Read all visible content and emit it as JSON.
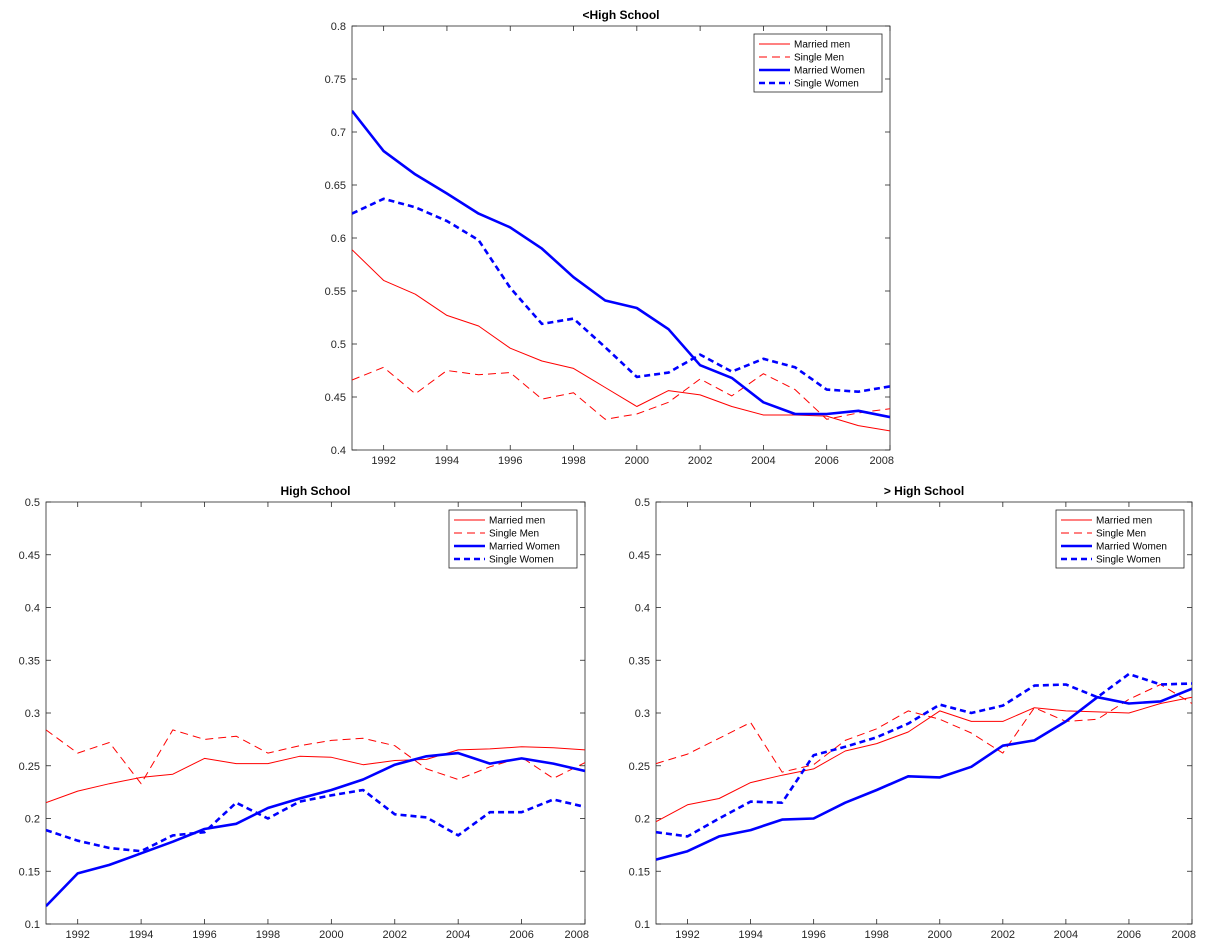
{
  "chart_data": [
    {
      "type": "line",
      "title": "<High School",
      "xlabel": "",
      "ylabel": "",
      "xlim": [
        1991,
        2008
      ],
      "ylim": [
        0.4,
        0.8
      ],
      "yticks": [
        0.4,
        0.45,
        0.5,
        0.55,
        0.6,
        0.65,
        0.7,
        0.75,
        0.8
      ],
      "xticks": [
        1992,
        1994,
        1996,
        1998,
        2000,
        2002,
        2004,
        2006,
        2008
      ],
      "x": [
        1991,
        1992,
        1993,
        1994,
        1995,
        1996,
        1997,
        1998,
        1999,
        2000,
        2001,
        2002,
        2003,
        2004,
        2005,
        2006,
        2007,
        2008
      ],
      "legend_position": "top-right",
      "grid": false,
      "series": [
        {
          "name": "Married men",
          "color": "#ff0000",
          "style": "solid-thin",
          "values": [
            0.589,
            0.56,
            0.547,
            0.527,
            0.517,
            0.496,
            0.484,
            0.477,
            0.459,
            0.441,
            0.456,
            0.452,
            0.441,
            0.433,
            0.433,
            0.432,
            0.423,
            0.418
          ]
        },
        {
          "name": "Single Men",
          "color": "#ff0000",
          "style": "dashed-thin",
          "values": [
            0.466,
            0.478,
            0.453,
            0.475,
            0.471,
            0.473,
            0.448,
            0.454,
            0.429,
            0.434,
            0.445,
            0.467,
            0.451,
            0.472,
            0.457,
            0.429,
            0.435,
            0.439
          ]
        },
        {
          "name": "Married Women",
          "color": "#0000ff",
          "style": "solid-thick",
          "values": [
            0.72,
            0.682,
            0.66,
            0.642,
            0.623,
            0.61,
            0.59,
            0.563,
            0.541,
            0.534,
            0.514,
            0.48,
            0.468,
            0.445,
            0.434,
            0.434,
            0.437,
            0.431
          ]
        },
        {
          "name": "Single Women",
          "color": "#0000ff",
          "style": "dashed-thick",
          "values": [
            0.623,
            0.637,
            0.629,
            0.616,
            0.598,
            0.553,
            0.519,
            0.524,
            0.497,
            0.469,
            0.473,
            0.49,
            0.474,
            0.486,
            0.478,
            0.457,
            0.455,
            0.46
          ]
        }
      ]
    },
    {
      "type": "line",
      "title": "High School",
      "xlabel": "",
      "ylabel": "",
      "xlim": [
        1991,
        2008
      ],
      "ylim": [
        0.1,
        0.5
      ],
      "yticks": [
        0.1,
        0.15,
        0.2,
        0.25,
        0.3,
        0.35,
        0.4,
        0.45,
        0.5
      ],
      "xticks": [
        1992,
        1994,
        1996,
        1998,
        2000,
        2002,
        2004,
        2006,
        2008
      ],
      "x": [
        1991,
        1992,
        1993,
        1994,
        1995,
        1996,
        1997,
        1998,
        1999,
        2000,
        2001,
        2002,
        2003,
        2004,
        2005,
        2006,
        2007,
        2008
      ],
      "legend_position": "top-right",
      "grid": false,
      "series": [
        {
          "name": "Married men",
          "color": "#ff0000",
          "style": "solid-thin",
          "values": [
            0.215,
            0.226,
            0.233,
            0.239,
            0.242,
            0.257,
            0.252,
            0.252,
            0.259,
            0.258,
            0.251,
            0.255,
            0.256,
            0.265,
            0.266,
            0.268,
            0.267,
            0.265
          ]
        },
        {
          "name": "Single Men",
          "color": "#ff0000",
          "style": "dashed-thin",
          "values": [
            0.284,
            0.262,
            0.272,
            0.233,
            0.284,
            0.275,
            0.278,
            0.262,
            0.269,
            0.274,
            0.276,
            0.269,
            0.247,
            0.237,
            0.249,
            0.258,
            0.238,
            0.253
          ]
        },
        {
          "name": "Married Women",
          "color": "#0000ff",
          "style": "solid-thick",
          "values": [
            0.117,
            0.148,
            0.156,
            0.167,
            0.178,
            0.19,
            0.195,
            0.21,
            0.219,
            0.227,
            0.237,
            0.251,
            0.259,
            0.262,
            0.252,
            0.257,
            0.252,
            0.245
          ]
        },
        {
          "name": "Single Women",
          "color": "#0000ff",
          "style": "dashed-thick",
          "values": [
            0.189,
            0.179,
            0.172,
            0.169,
            0.184,
            0.187,
            0.215,
            0.2,
            0.216,
            0.222,
            0.227,
            0.204,
            0.201,
            0.184,
            0.206,
            0.206,
            0.218,
            0.211
          ]
        }
      ]
    },
    {
      "type": "line",
      "title": "> High School",
      "xlabel": "",
      "ylabel": "",
      "xlim": [
        1991,
        2008
      ],
      "ylim": [
        0.1,
        0.5
      ],
      "yticks": [
        0.1,
        0.15,
        0.2,
        0.25,
        0.3,
        0.35,
        0.4,
        0.45,
        0.5
      ],
      "xticks": [
        1992,
        1994,
        1996,
        1998,
        2000,
        2002,
        2004,
        2006,
        2008
      ],
      "x": [
        1991,
        1992,
        1993,
        1994,
        1995,
        1996,
        1997,
        1998,
        1999,
        2000,
        2001,
        2002,
        2003,
        2004,
        2005,
        2006,
        2007,
        2008
      ],
      "legend_position": "top-right",
      "grid": false,
      "series": [
        {
          "name": "Married men",
          "color": "#ff0000",
          "style": "solid-thin",
          "values": [
            0.197,
            0.213,
            0.219,
            0.234,
            0.241,
            0.247,
            0.264,
            0.271,
            0.282,
            0.302,
            0.292,
            0.292,
            0.305,
            0.302,
            0.301,
            0.3,
            0.309,
            0.315
          ]
        },
        {
          "name": "Single Men",
          "color": "#ff0000",
          "style": "dashed-thin",
          "values": [
            0.252,
            0.261,
            0.276,
            0.291,
            0.244,
            0.251,
            0.274,
            0.285,
            0.302,
            0.294,
            0.281,
            0.262,
            0.305,
            0.292,
            0.294,
            0.313,
            0.327,
            0.309
          ]
        },
        {
          "name": "Married Women",
          "color": "#0000ff",
          "style": "solid-thick",
          "values": [
            0.161,
            0.169,
            0.183,
            0.189,
            0.199,
            0.2,
            0.215,
            0.227,
            0.24,
            0.239,
            0.249,
            0.269,
            0.274,
            0.292,
            0.315,
            0.309,
            0.311,
            0.323
          ]
        },
        {
          "name": "Single Women",
          "color": "#0000ff",
          "style": "dashed-thick",
          "values": [
            0.187,
            0.183,
            0.2,
            0.216,
            0.215,
            0.26,
            0.268,
            0.277,
            0.29,
            0.308,
            0.3,
            0.307,
            0.326,
            0.327,
            0.315,
            0.337,
            0.327,
            0.328
          ]
        }
      ]
    }
  ]
}
